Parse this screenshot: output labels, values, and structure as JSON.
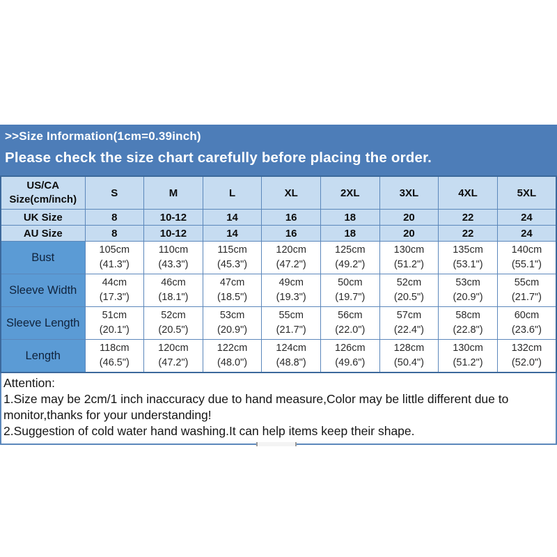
{
  "banner": {
    "title": ">>Size Information(1cm=0.39inch)",
    "subtitle": "Please check the size chart carefully before placing the order."
  },
  "size_table": {
    "corner": {
      "line1": "US/CA",
      "line2": "Size(cm/inch)"
    },
    "sizes": [
      "S",
      "M",
      "L",
      "XL",
      "2XL",
      "3XL",
      "4XL",
      "5XL"
    ],
    "uk_row": {
      "label": "UK Size",
      "values": [
        "8",
        "10-12",
        "14",
        "16",
        "18",
        "20",
        "22",
        "24"
      ]
    },
    "au_row": {
      "label": "AU Size",
      "values": [
        "8",
        "10-12",
        "14",
        "16",
        "18",
        "20",
        "22",
        "24"
      ]
    },
    "measurements": [
      {
        "label": "Bust",
        "cells": [
          {
            "cm": "105cm",
            "inch": "(41.3\")"
          },
          {
            "cm": "110cm",
            "inch": "(43.3\")"
          },
          {
            "cm": "115cm",
            "inch": "(45.3\")"
          },
          {
            "cm": "120cm",
            "inch": "(47.2\")"
          },
          {
            "cm": "125cm",
            "inch": "(49.2\")"
          },
          {
            "cm": "130cm",
            "inch": "(51.2\")"
          },
          {
            "cm": "135cm",
            "inch": "(53.1\")"
          },
          {
            "cm": "140cm",
            "inch": "(55.1\")"
          }
        ]
      },
      {
        "label": "Sleeve Width",
        "cells": [
          {
            "cm": "44cm",
            "inch": "(17.3\")"
          },
          {
            "cm": "46cm",
            "inch": "(18.1\")"
          },
          {
            "cm": "47cm",
            "inch": "(18.5\")"
          },
          {
            "cm": "49cm",
            "inch": "(19.3\")"
          },
          {
            "cm": "50cm",
            "inch": "(19.7\")"
          },
          {
            "cm": "52cm",
            "inch": "(20.5\")"
          },
          {
            "cm": "53cm",
            "inch": "(20.9\")"
          },
          {
            "cm": "55cm",
            "inch": "(21.7\")"
          }
        ]
      },
      {
        "label": "Sleeve Length",
        "cells": [
          {
            "cm": "51cm",
            "inch": "(20.1\")"
          },
          {
            "cm": "52cm",
            "inch": "(20.5\")"
          },
          {
            "cm": "53cm",
            "inch": "(20.9\")"
          },
          {
            "cm": "55cm",
            "inch": "(21.7\")"
          },
          {
            "cm": "56cm",
            "inch": "(22.0\")"
          },
          {
            "cm": "57cm",
            "inch": "(22.4\")"
          },
          {
            "cm": "58cm",
            "inch": "(22.8\")"
          },
          {
            "cm": "60cm",
            "inch": "(23.6\")"
          }
        ]
      },
      {
        "label": "Length",
        "cells": [
          {
            "cm": "118cm",
            "inch": "(46.5\")"
          },
          {
            "cm": "120cm",
            "inch": "(47.2\")"
          },
          {
            "cm": "122cm",
            "inch": "(48.0\")"
          },
          {
            "cm": "124cm",
            "inch": "(48.8\")"
          },
          {
            "cm": "126cm",
            "inch": "(49.6\")"
          },
          {
            "cm": "128cm",
            "inch": "(50.4\")"
          },
          {
            "cm": "130cm",
            "inch": "(51.2\")"
          },
          {
            "cm": "132cm",
            "inch": "(52.0\")"
          }
        ]
      }
    ]
  },
  "attention": {
    "heading": "Attention:",
    "notes": [
      "1.Size may be 2cm/1 inch inaccuracy due to hand measure,Color may be little different due to monitor,thanks for your understanding!",
      "2.Suggestion of cold water hand washing.It can help items keep their shape."
    ]
  },
  "colors": {
    "banner_bg": "#4d7db8",
    "banner_text": "#ffffff",
    "header_bg": "#c6dcf1",
    "row_label_bg": "#5b9bd5",
    "grid_line": "#5b87bb",
    "outer_border": "#3c699c",
    "text": "#111111"
  }
}
